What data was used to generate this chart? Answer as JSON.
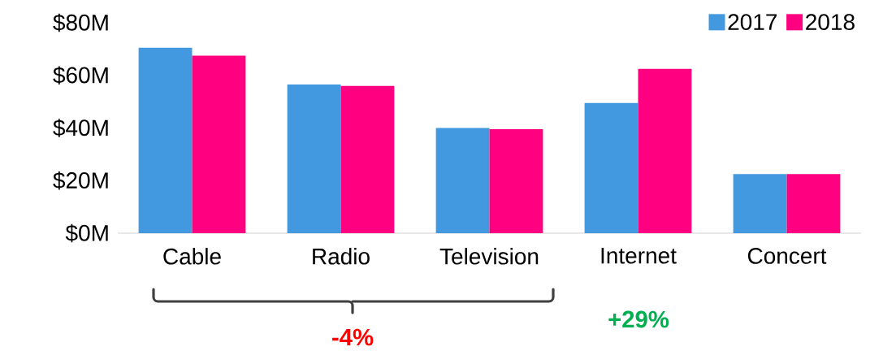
{
  "chart_data": {
    "type": "bar",
    "categories": [
      "Cable",
      "Radio",
      "Television",
      "Internet",
      "Concert"
    ],
    "series": [
      {
        "name": "2017",
        "color": "#4399e0",
        "values": [
          70.5,
          56.5,
          40,
          49.5,
          22.5
        ]
      },
      {
        "name": "2018",
        "color": "#ff0080",
        "values": [
          67.5,
          56,
          39.5,
          62.5,
          22.5
        ]
      }
    ],
    "ylim": [
      0,
      80
    ],
    "yticks": [
      {
        "value": 0,
        "label": "$0M"
      },
      {
        "value": 20,
        "label": "$20M"
      },
      {
        "value": 40,
        "label": "$40M"
      },
      {
        "value": 60,
        "label": "$60M"
      },
      {
        "value": 80,
        "label": "$80M"
      }
    ],
    "legend": "top right",
    "grid": false,
    "annotations": [
      "-4%",
      "+29%"
    ]
  }
}
